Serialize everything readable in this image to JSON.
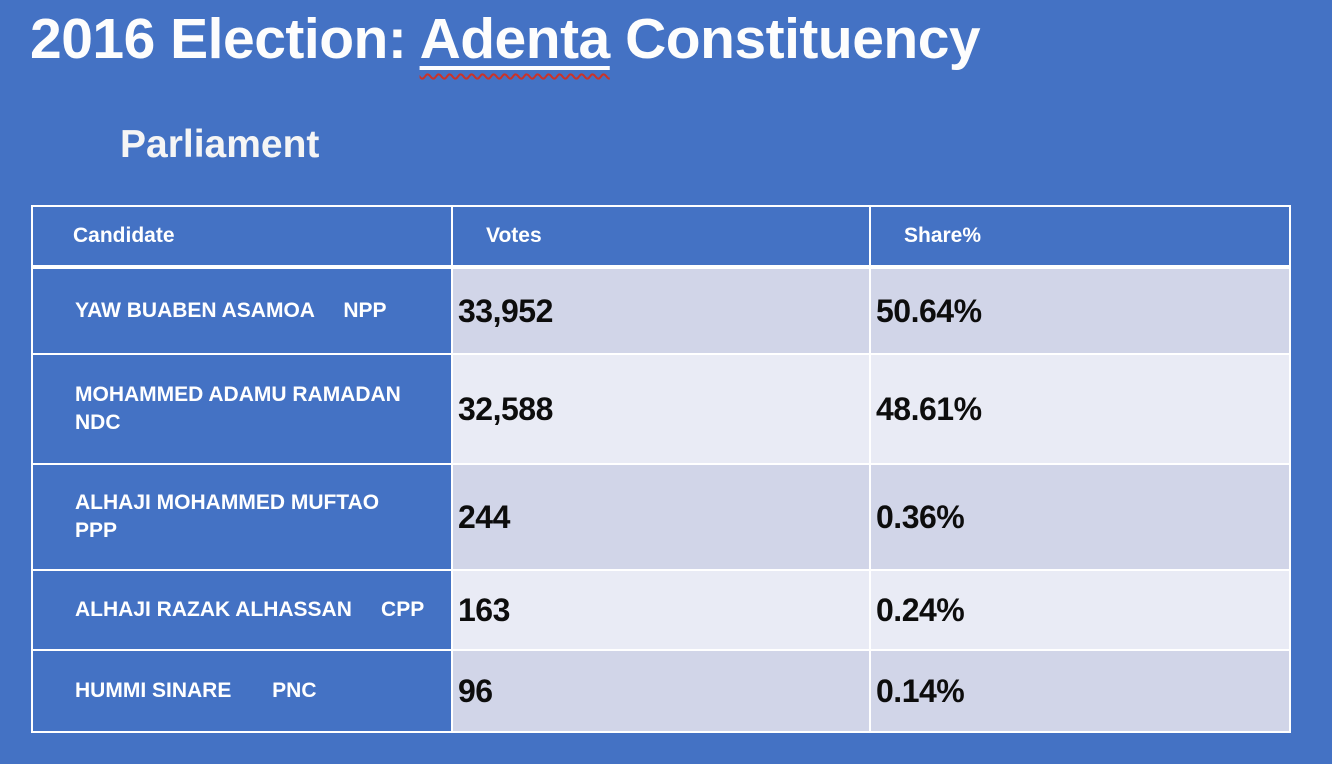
{
  "slide": {
    "title_prefix": "2016 Election: ",
    "title_highlight": "Adenta",
    "title_suffix": " Constituency",
    "subtitle": "Parliament"
  },
  "colors": {
    "background_blue": "#4472c4",
    "table_header_blue": "#4472c4",
    "band_dark": "#d1d5e8",
    "band_light": "#e9ebf5",
    "grid_border": "#ffffff",
    "title_text": "#fdfdfd",
    "value_text": "#0d0d0d",
    "spellcheck_red": "#cc3328"
  },
  "table": {
    "headers": [
      "Candidate",
      "Votes",
      "Share%"
    ],
    "rows": [
      {
        "name": "YAW BUABEN ASAMOA",
        "party": "NPP",
        "candidate_lines": [
          "YAW BUABEN ASAMOA     NPP"
        ],
        "votes": "33,952",
        "share": "50.64%"
      },
      {
        "name": "MOHAMMED ADAMU RAMADAN",
        "party": "NDC",
        "candidate_lines": [
          "MOHAMMED ADAMU RAMADAN",
          "NDC"
        ],
        "votes": "32,588",
        "share": "48.61%"
      },
      {
        "name": "ALHAJI MOHAMMED MUFTAO",
        "party": "PPP",
        "candidate_lines": [
          "ALHAJI MOHAMMED MUFTAO",
          "PPP"
        ],
        "votes": "244",
        "share": "0.36%"
      },
      {
        "name": "ALHAJI RAZAK ALHASSAN",
        "party": "CPP",
        "candidate_lines": [
          "ALHAJI RAZAK ALHASSAN     CPP"
        ],
        "votes": "163",
        "share": "0.24%"
      },
      {
        "name": "HUMMI SINARE",
        "party": "PNC",
        "candidate_lines": [
          "HUMMI SINARE       PNC"
        ],
        "votes": "96",
        "share": "0.14%"
      }
    ]
  }
}
